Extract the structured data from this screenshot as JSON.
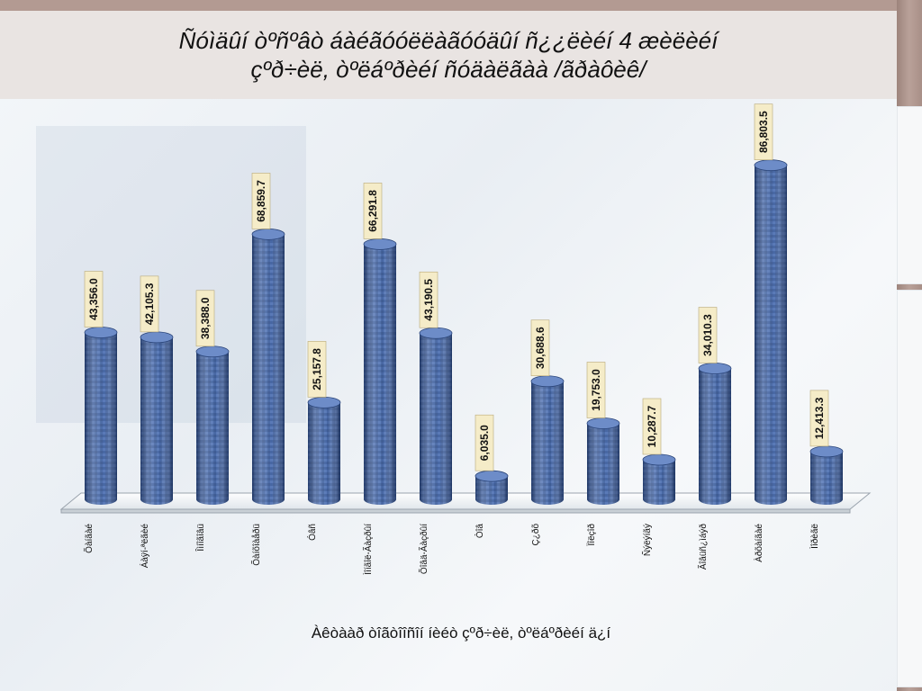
{
  "title": {
    "line1": "Ñóìäûí òºñºâò áàéãóóëëàãóóäûí ñ¿¿ëèéí 4  æèëèéí",
    "line2": "çºð÷èë, òºëáºðèéí ñóäàëãàà /ãðàôèê/"
  },
  "chart_data": {
    "type": "bar",
    "categories": [
      "Õàíãàé",
      "Áàÿí-ªëãèé",
      "Îìíîãîâü",
      "Õàíõîàåðü",
      "Óâñ",
      "Ìîíãîë-Ãàçðûí",
      "Õîâä-Ãàçðûí",
      "Òîâ",
      "Ç¿ðõ",
      "Ïîëçîð",
      "Ñýëýíãý",
      "Ãîâüñ¿ìáýð",
      "Àðõàíãàé",
      "Ìîðèãë"
    ],
    "values": [
      43356.0,
      42105.3,
      38388.0,
      68859.7,
      25157.8,
      66291.8,
      43190.5,
      6035.0,
      30688.6,
      19753.0,
      10287.7,
      34010.3,
      86803.5,
      12413.3
    ],
    "value_labels": [
      "43,356.0",
      "42,105.3",
      "38,388.0",
      "68,859.7",
      "25,157.8",
      "66,291.8",
      "43,190.5",
      "6,035.0",
      "30,688.6",
      "19,753.0",
      "10,287.7",
      "34,010.3",
      "86,803.5",
      "12,413.3"
    ],
    "xlabel": "Àêòààð òîãòîîñîí íèéò çºð÷èë, òºëáºðèéí ä¿í",
    "ylim": [
      0,
      90000
    ],
    "style": "3d-cylinder",
    "bar_color": "#3c5e9e",
    "label_box_color": "#f5ecc8"
  }
}
